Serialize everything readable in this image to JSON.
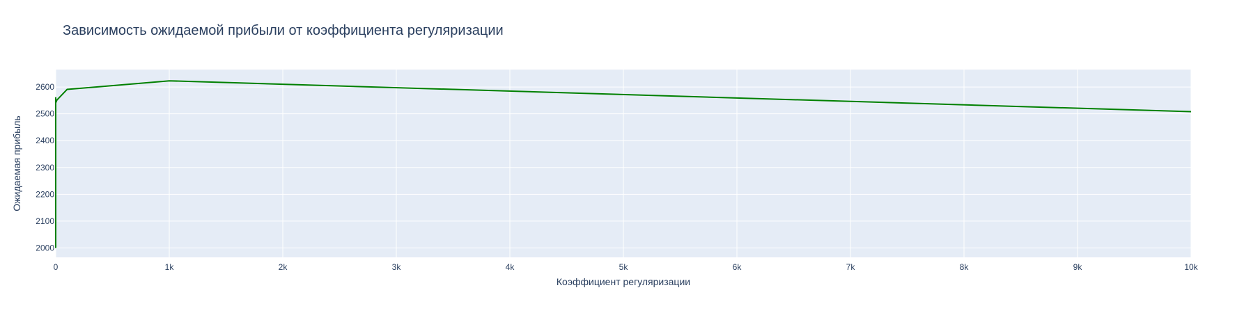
{
  "chart_data": {
    "type": "line",
    "title": "Зависимость ожидаемой прибыли от коэффициента регуляризации",
    "xlabel": "Коэффициент регуляризации",
    "ylabel": "Ожидаемая прибыль",
    "xlim": [
      0,
      10000
    ],
    "ylim": [
      1965,
      2665
    ],
    "x_ticks": [
      0,
      1000,
      2000,
      3000,
      4000,
      5000,
      6000,
      7000,
      8000,
      9000,
      10000
    ],
    "x_tick_labels": [
      "0",
      "1k",
      "2k",
      "3k",
      "4k",
      "5k",
      "6k",
      "7k",
      "8k",
      "9k",
      "10k"
    ],
    "y_ticks": [
      2000,
      2100,
      2200,
      2300,
      2400,
      2500,
      2600
    ],
    "y_tick_labels": [
      "2000",
      "2100",
      "2200",
      "2300",
      "2400",
      "2500",
      "2600"
    ],
    "grid": true,
    "series": [
      {
        "color": "#008000",
        "x": [
          0.001,
          0.01,
          0.1,
          1,
          10,
          100,
          1000,
          10000
        ],
        "y": [
          2000,
          2560,
          2548,
          2542,
          2551,
          2591,
          2623,
          2508
        ]
      }
    ],
    "plot_background": "#e5ecf6"
  }
}
